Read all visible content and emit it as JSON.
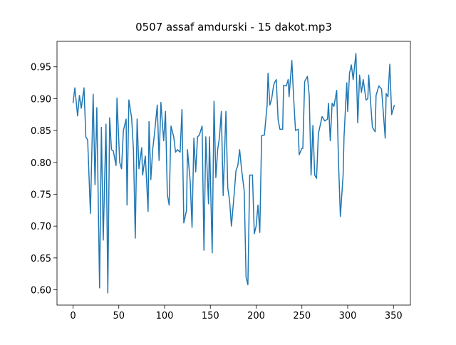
{
  "chart_data": {
    "type": "line",
    "title": "0507 assaf amdurski - 15 dakot.mp3",
    "x": [
      0,
      2,
      5,
      7,
      9,
      12,
      14,
      16,
      19,
      22,
      24,
      26,
      29,
      31,
      33,
      36,
      38,
      40,
      42,
      44,
      47,
      48,
      51,
      53,
      55,
      58,
      59,
      61,
      64,
      66,
      68,
      70,
      72,
      75,
      76,
      79,
      82,
      83,
      85,
      87,
      89,
      92,
      94,
      96,
      99,
      101,
      103,
      105,
      107,
      110,
      112,
      114,
      117,
      119,
      121,
      124,
      125,
      128,
      130,
      132,
      134,
      136,
      138,
      141,
      143,
      145,
      148,
      149,
      152,
      154,
      156,
      158,
      160,
      162,
      164,
      167,
      169,
      171,
      173,
      176,
      178,
      180,
      182,
      184,
      187,
      189,
      191,
      193,
      196,
      198,
      200,
      202,
      204,
      206,
      209,
      212,
      213,
      215,
      217,
      219,
      220,
      222,
      224,
      226,
      229,
      230,
      233,
      235,
      236,
      239,
      241,
      243,
      246,
      247,
      250,
      251,
      253,
      256,
      258,
      260,
      262,
      264,
      266,
      268,
      271,
      272,
      275,
      278,
      279,
      281,
      283,
      285,
      288,
      290,
      292,
      295,
      296,
      299,
      300,
      302,
      304,
      306,
      309,
      311,
      313,
      315,
      317,
      320,
      322,
      323,
      325,
      327,
      330,
      331,
      334,
      337,
      341,
      342,
      344,
      346,
      348,
      351
    ],
    "series": [
      {
        "color": "#1f77b4",
        "values": [
          0.893,
          0.917,
          0.873,
          0.905,
          0.885,
          0.917,
          0.84,
          0.835,
          0.72,
          0.907,
          0.765,
          0.886,
          0.603,
          0.855,
          0.678,
          0.86,
          0.595,
          0.87,
          0.82,
          0.818,
          0.795,
          0.901,
          0.8,
          0.79,
          0.85,
          0.868,
          0.733,
          0.898,
          0.87,
          0.82,
          0.681,
          0.868,
          0.79,
          0.823,
          0.78,
          0.81,
          0.723,
          0.864,
          0.773,
          0.82,
          0.845,
          0.89,
          0.803,
          0.894,
          0.834,
          0.88,
          0.75,
          0.733,
          0.857,
          0.84,
          0.816,
          0.82,
          0.816,
          0.883,
          0.705,
          0.725,
          0.82,
          0.77,
          0.698,
          0.838,
          0.785,
          0.84,
          0.843,
          0.857,
          0.662,
          0.84,
          0.735,
          0.84,
          0.658,
          0.896,
          0.776,
          0.82,
          0.84,
          0.88,
          0.748,
          0.88,
          0.76,
          0.74,
          0.7,
          0.75,
          0.787,
          0.795,
          0.82,
          0.79,
          0.755,
          0.62,
          0.608,
          0.78,
          0.78,
          0.688,
          0.7,
          0.733,
          0.69,
          0.842,
          0.843,
          0.89,
          0.94,
          0.89,
          0.9,
          0.92,
          0.925,
          0.93,
          0.867,
          0.852,
          0.852,
          0.921,
          0.92,
          0.93,
          0.903,
          0.96,
          0.9,
          0.85,
          0.852,
          0.812,
          0.822,
          0.822,
          0.927,
          0.935,
          0.905,
          0.78,
          0.858,
          0.78,
          0.775,
          0.845,
          0.865,
          0.872,
          0.865,
          0.868,
          0.893,
          0.834,
          0.893,
          0.888,
          0.913,
          0.8,
          0.715,
          0.78,
          0.84,
          0.925,
          0.88,
          0.94,
          0.953,
          0.93,
          0.971,
          0.862,
          0.937,
          0.91,
          0.93,
          0.898,
          0.9,
          0.937,
          0.895,
          0.855,
          0.848,
          0.905,
          0.92,
          0.915,
          0.838,
          0.908,
          0.903,
          0.954,
          0.875,
          0.89
        ]
      }
    ],
    "xlim": [
      -17.5,
      368.5
    ],
    "ylim": [
      0.576,
      0.99
    ],
    "xticks": [
      0,
      50,
      100,
      150,
      200,
      250,
      300,
      350
    ],
    "yticks": [
      {
        "value": 0.6,
        "label": "0.60"
      },
      {
        "value": 0.65,
        "label": "0.65"
      },
      {
        "value": 0.7,
        "label": "0.70"
      },
      {
        "value": 0.75,
        "label": "0.75"
      },
      {
        "value": 0.8,
        "label": "0.80"
      },
      {
        "value": 0.85,
        "label": "0.85"
      },
      {
        "value": 0.9,
        "label": "0.90"
      },
      {
        "value": 0.95,
        "label": "0.95"
      }
    ],
    "grid": false
  }
}
